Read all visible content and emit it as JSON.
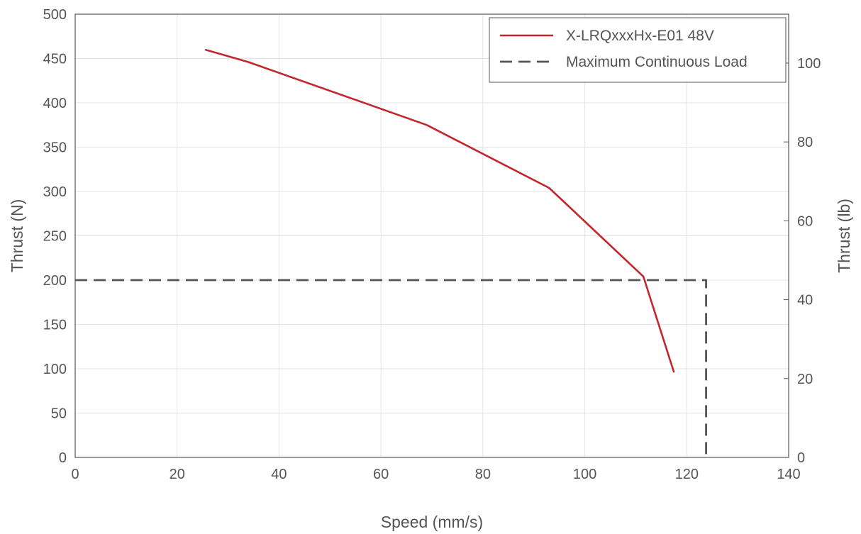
{
  "chart_data": {
    "type": "line",
    "title": "",
    "xlabel": "Speed (mm/s)",
    "ylabel": "Thrust (N)",
    "y2label": "Thrust (lb)",
    "xlim": [
      0,
      140
    ],
    "ylim": [
      0,
      500
    ],
    "y2lim": [
      0,
      112.4
    ],
    "xticks": [
      0,
      20,
      40,
      60,
      80,
      100,
      120,
      140
    ],
    "yticks": [
      0,
      50,
      100,
      150,
      200,
      250,
      300,
      350,
      400,
      450,
      500
    ],
    "y2ticks": [
      0,
      20,
      40,
      60,
      80,
      100
    ],
    "grid": true,
    "legend_position": "top-right",
    "series": [
      {
        "name": "X-LRQxxxHx-E01 48V",
        "style": "solid",
        "color": "#c1272d",
        "x": [
          25.5,
          34,
          69,
          93,
          111.5,
          117.5
        ],
        "y": [
          460,
          446,
          375,
          304,
          204,
          96
        ]
      },
      {
        "name": "Maximum Continuous Load",
        "style": "dashed",
        "color": "#555555",
        "x": [
          0,
          123.8,
          123.8
        ],
        "y": [
          200,
          200,
          0
        ]
      }
    ]
  }
}
